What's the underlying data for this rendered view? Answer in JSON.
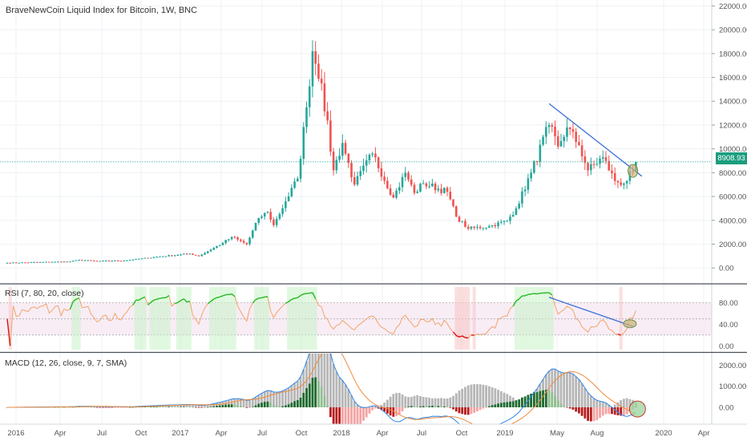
{
  "header": {
    "title": "BraveNewCoin Liquid Index for Bitcoin, 1W, BNC",
    "rsi_label": "RSI (7, 80, 20, close)",
    "macd_label": "MACD (12, 26, close, 9, 7, SMA)"
  },
  "price_badge": "8908.93",
  "colors": {
    "up": "#26a69a",
    "down": "#ef5350",
    "trendline": "#3a6fd8",
    "rsi_line": "#f2a46a",
    "rsi_overbought": "#22bb22",
    "rsi_oversold": "#dd1111",
    "macd_line": "#2f86e8",
    "signal_line": "#f08a3a",
    "hist_gray": "#a9a9a9",
    "hist_pos": "#1e6b2f",
    "hist_neg": "#b71c1c",
    "highlight_fill": "#c9b27a"
  },
  "chart_data": [
    {
      "type": "candlestick",
      "title": "BraveNewCoin Liquid Index for Bitcoin, 1W, BNC",
      "x_labels": [
        "2016",
        "Apr",
        "Jul",
        "Oct",
        "2017",
        "Apr",
        "Jul",
        "Oct",
        "2018",
        "Apr",
        "Jul",
        "Oct",
        "2019",
        "May",
        "Aug",
        "2020",
        "Apr"
      ],
      "y_ticks": [
        "0.00",
        "2000.00",
        "4000.00",
        "6000.00",
        "8000.00",
        "10000.00",
        "12000.00",
        "14000.00",
        "16000.00",
        "18000.00",
        "20000.00",
        "22000.00"
      ],
      "ylim": [
        -1200,
        22500
      ],
      "last_price": 8908.93,
      "anchors": [
        [
          "2016-01-04",
          430
        ],
        [
          "2016-05-30",
          540
        ],
        [
          "2016-06-20",
          680
        ],
        [
          "2016-08-01",
          580
        ],
        [
          "2016-10-03",
          620
        ],
        [
          "2016-12-26",
          960
        ],
        [
          "2017-03-06",
          1200
        ],
        [
          "2017-03-27",
          1000
        ],
        [
          "2017-05-22",
          2100
        ],
        [
          "2017-06-12",
          2600
        ],
        [
          "2017-07-17",
          2000
        ],
        [
          "2017-08-14",
          4200
        ],
        [
          "2017-09-04",
          4700
        ],
        [
          "2017-09-18",
          3600
        ],
        [
          "2017-10-16",
          5600
        ],
        [
          "2017-11-13",
          7500
        ],
        [
          "2017-12-04",
          13500
        ],
        [
          "2017-12-18",
          18200
        ],
        [
          "2018-01-08",
          15500
        ],
        [
          "2018-02-05",
          8200
        ],
        [
          "2018-02-26",
          10500
        ],
        [
          "2018-03-26",
          7000
        ],
        [
          "2018-05-07",
          9600
        ],
        [
          "2018-06-25",
          5900
        ],
        [
          "2018-07-23",
          8000
        ],
        [
          "2018-08-13",
          6300
        ],
        [
          "2018-09-03",
          7100
        ],
        [
          "2018-10-29",
          6400
        ],
        [
          "2018-11-19",
          4300
        ],
        [
          "2018-12-17",
          3300
        ],
        [
          "2019-02-04",
          3500
        ],
        [
          "2019-03-18",
          3950
        ],
        [
          "2019-04-08",
          5000
        ],
        [
          "2019-05-13",
          8000
        ],
        [
          "2019-06-24",
          12000
        ],
        [
          "2019-07-15",
          10200
        ],
        [
          "2019-08-05",
          11800
        ],
        [
          "2019-09-02",
          10300
        ],
        [
          "2019-09-23",
          8200
        ],
        [
          "2019-10-28",
          9300
        ],
        [
          "2019-11-25",
          7300
        ],
        [
          "2019-12-16",
          7100
        ],
        [
          "2020-01-06",
          8100
        ],
        [
          "2020-01-13",
          8900
        ]
      ],
      "trendline": {
        "from": [
          "2019-06-24",
          13800
        ],
        "to": [
          "2020-01-27",
          7700
        ]
      }
    },
    {
      "type": "line",
      "title": "RSI (7, 80, 20, close)",
      "y_ticks": [
        "0.00",
        "40.00",
        "80.00"
      ],
      "ylim": [
        -10,
        112
      ],
      "bands": [
        20,
        50,
        80
      ],
      "trendline": {
        "from": [
          "2019-06-24",
          90
        ],
        "to": [
          "2020-01-06",
          36
        ]
      }
    },
    {
      "type": "bar",
      "title": "MACD (12, 26, close, 9, 7, SMA)",
      "y_ticks": [
        "0.00",
        "1000.00",
        "2000.00"
      ],
      "ylim": [
        -800,
        2550
      ]
    }
  ]
}
